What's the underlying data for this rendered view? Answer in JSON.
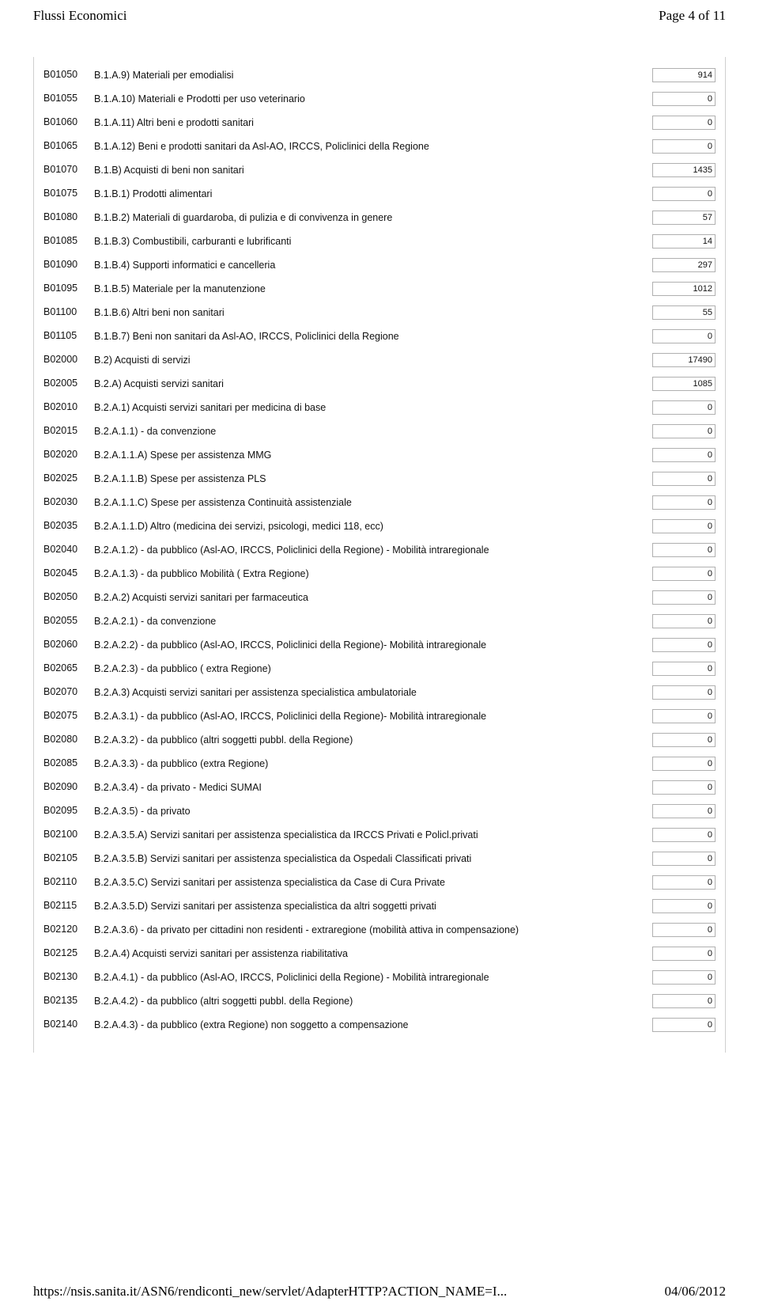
{
  "header": {
    "title": "Flussi Economici",
    "page_label": "Page 4 of 11"
  },
  "footer": {
    "url": "https://nsis.sanita.it/ASN6/rendiconti_new/servlet/AdapterHTTP?ACTION_NAME=I...",
    "date": "04/06/2012"
  },
  "rows": [
    {
      "code": "B01050",
      "desc": "B.1.A.9) Materiali per emodialisi",
      "value": "914"
    },
    {
      "code": "B01055",
      "desc": "B.1.A.10) Materiali e Prodotti per uso veterinario",
      "value": "0"
    },
    {
      "code": "B01060",
      "desc": "B.1.A.11) Altri beni e prodotti sanitari",
      "value": "0"
    },
    {
      "code": "B01065",
      "desc": "B.1.A.12) Beni e prodotti sanitari da Asl-AO, IRCCS, Policlinici della Regione",
      "value": "0"
    },
    {
      "code": "B01070",
      "desc": "B.1.B) Acquisti di beni non sanitari",
      "value": "1435"
    },
    {
      "code": "B01075",
      "desc": "B.1.B.1) Prodotti alimentari",
      "value": "0"
    },
    {
      "code": "B01080",
      "desc": "B.1.B.2) Materiali di guardaroba, di pulizia e di convivenza in genere",
      "value": "57"
    },
    {
      "code": "B01085",
      "desc": "B.1.B.3) Combustibili, carburanti e lubrificanti",
      "value": "14"
    },
    {
      "code": "B01090",
      "desc": "B.1.B.4) Supporti informatici e cancelleria",
      "value": "297"
    },
    {
      "code": "B01095",
      "desc": "B.1.B.5) Materiale per la manutenzione",
      "value": "1012"
    },
    {
      "code": "B01100",
      "desc": "B.1.B.6) Altri beni non sanitari",
      "value": "55"
    },
    {
      "code": "B01105",
      "desc": "B.1.B.7) Beni non sanitari da Asl-AO, IRCCS, Policlinici della Regione",
      "value": "0"
    },
    {
      "code": "B02000",
      "desc": "B.2) Acquisti di servizi",
      "value": "17490"
    },
    {
      "code": "B02005",
      "desc": "B.2.A) Acquisti servizi sanitari",
      "value": "1085"
    },
    {
      "code": "B02010",
      "desc": "B.2.A.1) Acquisti servizi sanitari per medicina di base",
      "value": "0"
    },
    {
      "code": "B02015",
      "desc": "B.2.A.1.1) - da convenzione",
      "value": "0"
    },
    {
      "code": "B02020",
      "desc": "B.2.A.1.1.A) Spese per assistenza MMG",
      "value": "0"
    },
    {
      "code": "B02025",
      "desc": "B.2.A.1.1.B) Spese per assistenza PLS",
      "value": "0"
    },
    {
      "code": "B02030",
      "desc": "B.2.A.1.1.C) Spese per assistenza Continuità assistenziale",
      "value": "0"
    },
    {
      "code": "B02035",
      "desc": "B.2.A.1.1.D) Altro (medicina dei servizi, psicologi, medici 118, ecc)",
      "value": "0"
    },
    {
      "code": "B02040",
      "desc": "B.2.A.1.2) - da pubblico (Asl-AO, IRCCS, Policlinici della Regione) - Mobilità intraregionale",
      "value": "0"
    },
    {
      "code": "B02045",
      "desc": "B.2.A.1.3) - da pubblico Mobilità ( Extra Regione)",
      "value": "0"
    },
    {
      "code": "B02050",
      "desc": "B.2.A.2) Acquisti servizi sanitari per farmaceutica",
      "value": "0"
    },
    {
      "code": "B02055",
      "desc": "B.2.A.2.1) - da convenzione",
      "value": "0"
    },
    {
      "code": "B02060",
      "desc": "B.2.A.2.2) - da pubblico (Asl-AO, IRCCS, Policlinici della Regione)- Mobilità intraregionale",
      "value": "0"
    },
    {
      "code": "B02065",
      "desc": "B.2.A.2.3) - da pubblico ( extra Regione)",
      "value": "0"
    },
    {
      "code": "B02070",
      "desc": "B.2.A.3) Acquisti servizi sanitari per assistenza specialistica ambulatoriale",
      "value": "0"
    },
    {
      "code": "B02075",
      "desc": "B.2.A.3.1) - da pubblico (Asl-AO, IRCCS, Policlinici della Regione)- Mobilità intraregionale",
      "value": "0"
    },
    {
      "code": "B02080",
      "desc": "B.2.A.3.2) - da pubblico (altri soggetti pubbl. della Regione)",
      "value": "0"
    },
    {
      "code": "B02085",
      "desc": "B.2.A.3.3) - da pubblico (extra Regione)",
      "value": "0"
    },
    {
      "code": "B02090",
      "desc": "B.2.A.3.4) - da privato - Medici SUMAI",
      "value": "0"
    },
    {
      "code": "B02095",
      "desc": "B.2.A.3.5) - da privato",
      "value": "0"
    },
    {
      "code": "B02100",
      "desc": "B.2.A.3.5.A) Servizi sanitari per assistenza specialistica da IRCCS Privati e Policl.privati",
      "value": "0"
    },
    {
      "code": "B02105",
      "desc": "B.2.A.3.5.B) Servizi sanitari per assistenza specialistica da Ospedali Classificati privati",
      "value": "0"
    },
    {
      "code": "B02110",
      "desc": "B.2.A.3.5.C) Servizi sanitari per assistenza specialistica da Case di Cura Private",
      "value": "0"
    },
    {
      "code": "B02115",
      "desc": "B.2.A.3.5.D) Servizi sanitari per assistenza specialistica da altri soggetti privati",
      "value": "0"
    },
    {
      "code": "B02120",
      "desc": "B.2.A.3.6) - da privato per cittadini non residenti - extraregione (mobilità attiva in compensazione)",
      "value": "0"
    },
    {
      "code": "B02125",
      "desc": "B.2.A.4) Acquisti servizi sanitari per assistenza riabilitativa",
      "value": "0"
    },
    {
      "code": "B02130",
      "desc": "B.2.A.4.1) - da pubblico (Asl-AO, IRCCS, Policlinici della Regione) - Mobilità intraregionale",
      "value": "0"
    },
    {
      "code": "B02135",
      "desc": "B.2.A.4.2) - da pubblico (altri soggetti pubbl. della Regione)",
      "value": "0"
    },
    {
      "code": "B02140",
      "desc": "B.2.A.4.3) - da pubblico (extra Regione) non soggetto a compensazione",
      "value": "0"
    }
  ]
}
